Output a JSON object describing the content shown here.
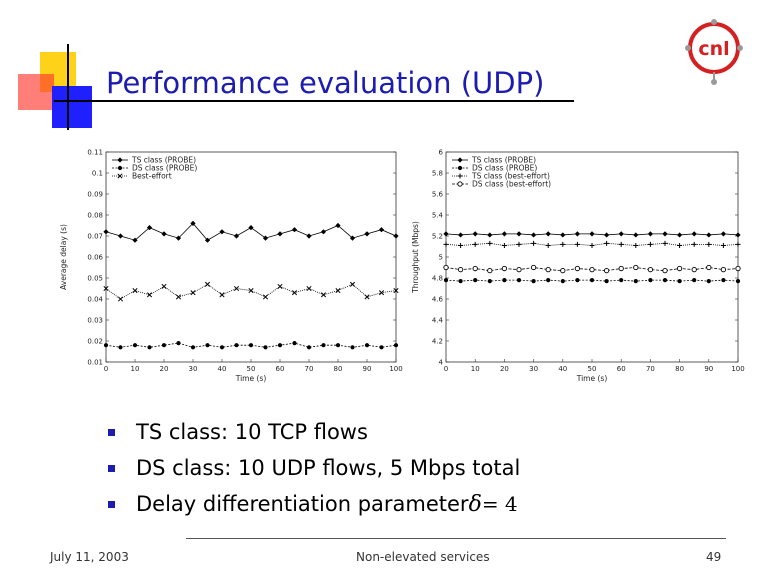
{
  "slide": {
    "title": "Performance evaluation (UDP)",
    "logo_text": "cnl",
    "bullets": [
      "TS class: 10 TCP flows",
      "DS class: 10 UDP flows, 5 Mbps total",
      "Delay differentiation parameter"
    ],
    "delta_symbol": "δ",
    "delta_value": "= 4",
    "footer": {
      "date": "July 11, 2003",
      "center": "Non-elevated services",
      "page": "49"
    },
    "colors": {
      "title": "#1c1cb0",
      "bullet": "#1c1cb0",
      "logo": "#d42020"
    }
  },
  "chart_data": [
    {
      "type": "line",
      "xlabel": "Time (s)",
      "ylabel": "Average delay (s)",
      "xlim": [
        0,
        100
      ],
      "ylim": [
        0.01,
        0.11
      ],
      "xticks": [
        "0",
        "10",
        "20",
        "30",
        "40",
        "50",
        "60",
        "70",
        "80",
        "90",
        "100"
      ],
      "yticks": [
        "0.01",
        "0.02",
        "0.03",
        "0.04",
        "0.05",
        "0.06",
        "0.07",
        "0.08",
        "0.09",
        "0.1",
        "0.11"
      ],
      "legend_position": "top-left",
      "series": [
        {
          "name": "TS class (PROBE)",
          "marker": "diamond",
          "x": [
            0,
            5,
            10,
            15,
            20,
            25,
            30,
            35,
            40,
            45,
            50,
            55,
            60,
            65,
            70,
            75,
            80,
            85,
            90,
            95,
            100
          ],
          "y": [
            0.072,
            0.07,
            0.068,
            0.074,
            0.071,
            0.069,
            0.076,
            0.068,
            0.072,
            0.07,
            0.074,
            0.069,
            0.071,
            0.073,
            0.07,
            0.072,
            0.075,
            0.069,
            0.071,
            0.073,
            0.07
          ]
        },
        {
          "name": "DS class (PROBE)",
          "marker": "dot",
          "x": [
            0,
            5,
            10,
            15,
            20,
            25,
            30,
            35,
            40,
            45,
            50,
            55,
            60,
            65,
            70,
            75,
            80,
            85,
            90,
            95,
            100
          ],
          "y": [
            0.018,
            0.017,
            0.018,
            0.017,
            0.018,
            0.019,
            0.017,
            0.018,
            0.017,
            0.018,
            0.018,
            0.017,
            0.018,
            0.019,
            0.017,
            0.018,
            0.018,
            0.017,
            0.018,
            0.017,
            0.018
          ]
        },
        {
          "name": "Best-effort",
          "marker": "cross",
          "x": [
            0,
            5,
            10,
            15,
            20,
            25,
            30,
            35,
            40,
            45,
            50,
            55,
            60,
            65,
            70,
            75,
            80,
            85,
            90,
            95,
            100
          ],
          "y": [
            0.045,
            0.04,
            0.044,
            0.042,
            0.046,
            0.041,
            0.043,
            0.047,
            0.042,
            0.045,
            0.044,
            0.041,
            0.046,
            0.043,
            0.045,
            0.042,
            0.044,
            0.047,
            0.041,
            0.043,
            0.044
          ]
        }
      ]
    },
    {
      "type": "line",
      "xlabel": "Time (s)",
      "ylabel": "Throughput (Mbps)",
      "xlim": [
        0,
        100
      ],
      "ylim": [
        4,
        6
      ],
      "xticks": [
        "0",
        "10",
        "20",
        "30",
        "40",
        "50",
        "60",
        "70",
        "80",
        "90",
        "100"
      ],
      "yticks": [
        "4",
        "4.2",
        "4.4",
        "4.6",
        "4.8",
        "5",
        "5.2",
        "5.4",
        "5.6",
        "5.8",
        "6"
      ],
      "legend_position": "top-left",
      "series": [
        {
          "name": "TS class (PROBE)",
          "marker": "diamond",
          "x": [
            0,
            5,
            10,
            15,
            20,
            25,
            30,
            35,
            40,
            45,
            50,
            55,
            60,
            65,
            70,
            75,
            80,
            85,
            90,
            95,
            100
          ],
          "y": [
            5.22,
            5.21,
            5.22,
            5.21,
            5.22,
            5.22,
            5.21,
            5.22,
            5.21,
            5.22,
            5.22,
            5.21,
            5.22,
            5.21,
            5.22,
            5.22,
            5.21,
            5.22,
            5.21,
            5.22,
            5.21
          ]
        },
        {
          "name": "DS class (PROBE)",
          "marker": "dot",
          "x": [
            0,
            5,
            10,
            15,
            20,
            25,
            30,
            35,
            40,
            45,
            50,
            55,
            60,
            65,
            70,
            75,
            80,
            85,
            90,
            95,
            100
          ],
          "y": [
            4.78,
            4.77,
            4.78,
            4.77,
            4.78,
            4.78,
            4.77,
            4.78,
            4.77,
            4.78,
            4.78,
            4.77,
            4.78,
            4.77,
            4.78,
            4.78,
            4.77,
            4.78,
            4.77,
            4.78,
            4.77
          ]
        },
        {
          "name": "TS class (best-effort)",
          "marker": "plus",
          "x": [
            0,
            5,
            10,
            15,
            20,
            25,
            30,
            35,
            40,
            45,
            50,
            55,
            60,
            65,
            70,
            75,
            80,
            85,
            90,
            95,
            100
          ],
          "y": [
            5.12,
            5.11,
            5.12,
            5.13,
            5.11,
            5.12,
            5.13,
            5.11,
            5.12,
            5.12,
            5.11,
            5.13,
            5.12,
            5.11,
            5.12,
            5.13,
            5.11,
            5.12,
            5.12,
            5.11,
            5.12
          ]
        },
        {
          "name": "DS class (best-effort)",
          "marker": "circle",
          "x": [
            0,
            5,
            10,
            15,
            20,
            25,
            30,
            35,
            40,
            45,
            50,
            55,
            60,
            65,
            70,
            75,
            80,
            85,
            90,
            95,
            100
          ],
          "y": [
            4.9,
            4.88,
            4.89,
            4.87,
            4.89,
            4.88,
            4.9,
            4.88,
            4.87,
            4.89,
            4.88,
            4.87,
            4.89,
            4.9,
            4.88,
            4.87,
            4.89,
            4.88,
            4.9,
            4.88,
            4.89
          ]
        }
      ]
    }
  ]
}
